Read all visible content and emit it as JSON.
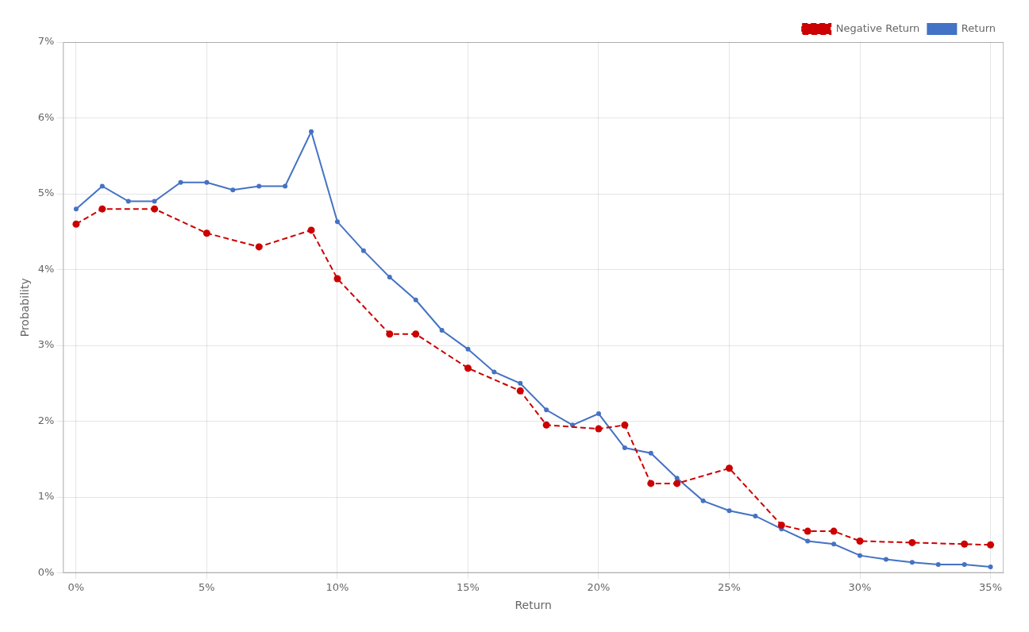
{
  "chart_data": {
    "type": "line",
    "xlabel": "Return",
    "ylabel": "Probability",
    "series": [
      {
        "name": "Return",
        "color": "#4472c4",
        "marker": "circle",
        "line_style": "solid",
        "x": [
          0.0,
          0.01,
          0.02,
          0.03,
          0.04,
          0.05,
          0.06,
          0.07,
          0.08,
          0.09,
          0.1,
          0.11,
          0.12,
          0.13,
          0.14,
          0.15,
          0.16,
          0.17,
          0.18,
          0.19,
          0.2,
          0.21,
          0.22,
          0.23,
          0.24,
          0.25,
          0.26,
          0.27,
          0.28,
          0.29,
          0.3,
          0.31,
          0.32,
          0.33,
          0.34,
          0.35
        ],
        "values": [
          0.048,
          0.051,
          0.049,
          0.049,
          0.0515,
          0.0515,
          0.0505,
          0.051,
          0.051,
          0.0582,
          0.0463,
          0.0425,
          0.039,
          0.036,
          0.032,
          0.0295,
          0.0265,
          0.025,
          0.0215,
          0.0195,
          0.021,
          0.0165,
          0.0158,
          0.0125,
          0.0095,
          0.0082,
          0.0075,
          0.0058,
          0.0042,
          0.0038,
          0.0023,
          0.0018,
          0.0014,
          0.0011,
          0.0011,
          0.0008
        ]
      },
      {
        "name": "Negative Return",
        "color": "#cc0000",
        "marker": "circle",
        "line_style": "dashed",
        "x": [
          0.0,
          0.01,
          0.03,
          0.05,
          0.07,
          0.09,
          0.1,
          0.12,
          0.13,
          0.15,
          0.17,
          0.18,
          0.2,
          0.21,
          0.22,
          0.23,
          0.25,
          0.27,
          0.28,
          0.29,
          0.3,
          0.32,
          0.34,
          0.35
        ],
        "values": [
          0.046,
          0.048,
          0.048,
          0.0448,
          0.043,
          0.0452,
          0.0388,
          0.0315,
          0.0315,
          0.027,
          0.024,
          0.0195,
          0.019,
          0.0195,
          0.0118,
          0.0118,
          0.0138,
          0.0063,
          0.0055,
          0.0055,
          0.0042,
          0.004,
          0.0038,
          0.0037
        ]
      }
    ],
    "xlim": [
      -0.005,
      0.355
    ],
    "xticks": [
      {
        "value": 0.0,
        "label": "0%"
      },
      {
        "value": 0.05,
        "label": "5%"
      },
      {
        "value": 0.1,
        "label": "10%"
      },
      {
        "value": 0.15,
        "label": "15%"
      },
      {
        "value": 0.2,
        "label": "20%"
      },
      {
        "value": 0.25,
        "label": "25%"
      },
      {
        "value": 0.3,
        "label": "30%"
      },
      {
        "value": 0.35,
        "label": "35%"
      }
    ],
    "ylim": [
      0,
      0.07
    ],
    "yticks": [
      {
        "value": 0.0,
        "label": "0%"
      },
      {
        "value": 0.01,
        "label": "1%"
      },
      {
        "value": 0.02,
        "label": "2%"
      },
      {
        "value": 0.03,
        "label": "3%"
      },
      {
        "value": 0.04,
        "label": "4%"
      },
      {
        "value": 0.05,
        "label": "5%"
      },
      {
        "value": 0.06,
        "label": "6%"
      },
      {
        "value": 0.07,
        "label": "7%"
      }
    ],
    "grid": true,
    "legend": "upper right"
  }
}
